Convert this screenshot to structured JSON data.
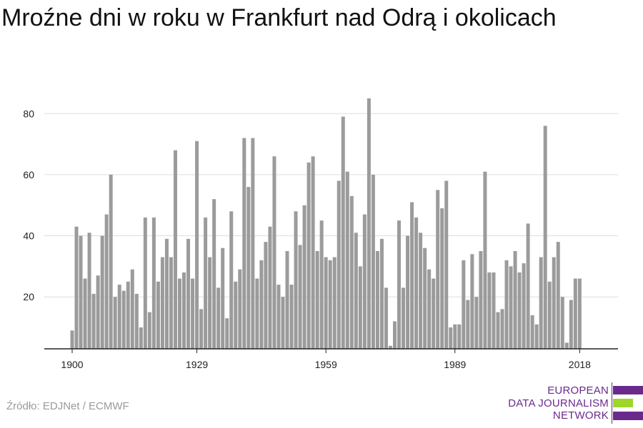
{
  "title": "Mroźne dni w roku w Frankfurt nad Odrą i okolicach",
  "source": "Źródło: EDJNet / ECMWF",
  "logo": {
    "lines": [
      "EUROPEAN",
      "DATA JOURNALISM",
      "NETWORK"
    ],
    "text_color": "#6a2a8c",
    "purple": "#6a2a8c",
    "green": "#9ed62a"
  },
  "colors": {
    "bar": "#9b9b9b",
    "grid": "#dddddd",
    "axis": "#222222",
    "tick_text": "#222222"
  },
  "chart_data": {
    "type": "bar",
    "title": "Mroźne dni w roku w Frankfurt nad Odrą i okolicach",
    "xlabel": "",
    "ylabel": "",
    "x_start": 1900,
    "x_end": 2018,
    "x_ticks": [
      1900,
      1929,
      1959,
      1989,
      2018
    ],
    "y_ticks": [
      20,
      40,
      60,
      80
    ],
    "ylim": [
      3,
      88
    ],
    "grid": true,
    "legend": "none",
    "values": [
      9,
      43,
      40,
      26,
      41,
      21,
      27,
      40,
      47,
      60,
      20,
      24,
      22,
      25,
      29,
      21,
      10,
      46,
      15,
      46,
      25,
      33,
      39,
      33,
      68,
      26,
      28,
      39,
      26,
      71,
      16,
      46,
      33,
      52,
      23,
      36,
      13,
      48,
      25,
      29,
      72,
      56,
      72,
      26,
      32,
      38,
      43,
      66,
      24,
      20,
      35,
      24,
      48,
      37,
      50,
      64,
      66,
      35,
      45,
      33,
      32,
      33,
      58,
      79,
      61,
      53,
      41,
      30,
      47,
      85,
      60,
      35,
      39,
      23,
      4,
      12,
      45,
      23,
      40,
      51,
      46,
      41,
      36,
      29,
      26,
      55,
      49,
      58,
      10,
      11,
      11,
      32,
      19,
      34,
      20,
      35,
      61,
      28,
      28,
      15,
      16,
      32,
      30,
      35,
      28,
      31,
      44,
      14,
      11,
      33,
      76,
      25,
      33,
      38,
      20,
      5,
      19,
      26,
      26
    ]
  }
}
